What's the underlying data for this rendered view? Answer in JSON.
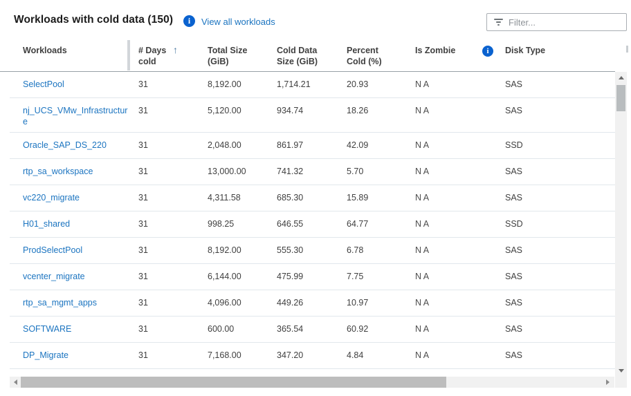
{
  "header": {
    "title": "Workloads with cold data (150)",
    "title_info_icon": "i",
    "view_all_link": "View all workloads"
  },
  "filter": {
    "placeholder": "Filter...",
    "value": ""
  },
  "colors": {
    "link_blue": "#1b74c0",
    "info_icon_blue": "#0a62cf",
    "header_border": "#98a0a6",
    "row_border": "#e1e7ec"
  },
  "table": {
    "columns": {
      "workloads": "Workloads",
      "days_cold": "# Days cold",
      "total_size": "Total Size (GiB)",
      "cold_data_size": "Cold Data Size (GiB)",
      "percent_cold": "Percent Cold (%)",
      "is_zombie": "Is Zombie",
      "disk_type": "Disk Type"
    },
    "sort": {
      "column": "days_cold",
      "direction_icon": "↑"
    },
    "zombie_info_icon": "i",
    "rows": [
      {
        "workload": "SelectPool",
        "days_cold": "31",
        "total_size": "8,192.00",
        "cold_data_size": "1,714.21",
        "percent_cold": "20.93",
        "is_zombie": "N A",
        "disk_type": "SAS",
        "tall": false
      },
      {
        "workload": "nj_UCS_VMw_Infrastructure",
        "days_cold": "31",
        "total_size": "5,120.00",
        "cold_data_size": "934.74",
        "percent_cold": "18.26",
        "is_zombie": "N A",
        "disk_type": "SAS",
        "tall": true
      },
      {
        "workload": "Oracle_SAP_DS_220",
        "days_cold": "31",
        "total_size": "2,048.00",
        "cold_data_size": "861.97",
        "percent_cold": "42.09",
        "is_zombie": "N A",
        "disk_type": "SSD",
        "tall": false
      },
      {
        "workload": "rtp_sa_workspace",
        "days_cold": "31",
        "total_size": "13,000.00",
        "cold_data_size": "741.32",
        "percent_cold": "5.70",
        "is_zombie": "N A",
        "disk_type": "SAS",
        "tall": false
      },
      {
        "workload": "vc220_migrate",
        "days_cold": "31",
        "total_size": "4,311.58",
        "cold_data_size": "685.30",
        "percent_cold": "15.89",
        "is_zombie": "N A",
        "disk_type": "SAS",
        "tall": false
      },
      {
        "workload": "H01_shared",
        "days_cold": "31",
        "total_size": "998.25",
        "cold_data_size": "646.55",
        "percent_cold": "64.77",
        "is_zombie": "N A",
        "disk_type": "SSD",
        "tall": false
      },
      {
        "workload": "ProdSelectPool",
        "days_cold": "31",
        "total_size": "8,192.00",
        "cold_data_size": "555.30",
        "percent_cold": "6.78",
        "is_zombie": "N A",
        "disk_type": "SAS",
        "tall": false
      },
      {
        "workload": "vcenter_migrate",
        "days_cold": "31",
        "total_size": "6,144.00",
        "cold_data_size": "475.99",
        "percent_cold": "7.75",
        "is_zombie": "N A",
        "disk_type": "SAS",
        "tall": false
      },
      {
        "workload": "rtp_sa_mgmt_apps",
        "days_cold": "31",
        "total_size": "4,096.00",
        "cold_data_size": "449.26",
        "percent_cold": "10.97",
        "is_zombie": "N A",
        "disk_type": "SAS",
        "tall": false
      },
      {
        "workload": "SOFTWARE",
        "days_cold": "31",
        "total_size": "600.00",
        "cold_data_size": "365.54",
        "percent_cold": "60.92",
        "is_zombie": "N A",
        "disk_type": "SAS",
        "tall": false
      },
      {
        "workload": "DP_Migrate",
        "days_cold": "31",
        "total_size": "7,168.00",
        "cold_data_size": "347.20",
        "percent_cold": "4.84",
        "is_zombie": "N A",
        "disk_type": "SAS",
        "tall": false
      }
    ]
  }
}
